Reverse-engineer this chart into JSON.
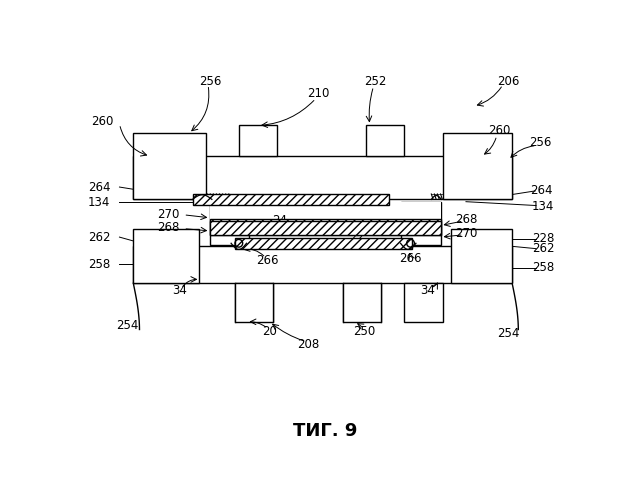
{
  "title": "ΤИГ. 9",
  "background_color": "#ffffff",
  "fig_width": 6.35,
  "fig_height": 5.0,
  "dpi": 100
}
